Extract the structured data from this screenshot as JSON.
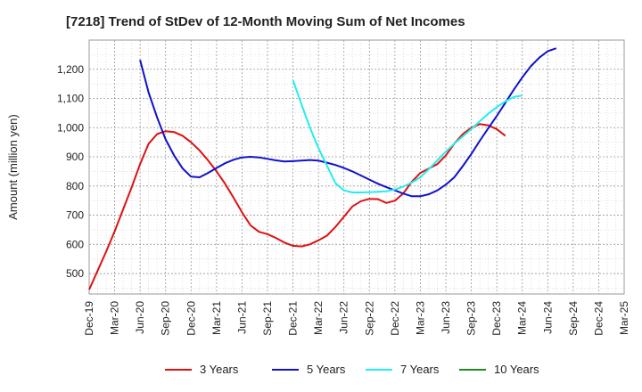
{
  "chart_data": {
    "type": "line",
    "title": "[7218]  Trend of StDev of 12-Month Moving Sum of Net Incomes",
    "ylabel": "Amount (million yen)",
    "xlabel": "",
    "ylim": [
      430,
      1300
    ],
    "yticks": [
      500,
      600,
      700,
      800,
      900,
      1000,
      1100,
      1200
    ],
    "ytick_labels": [
      "500",
      "600",
      "700",
      "800",
      "900",
      "1,000",
      "1,100",
      "1,200"
    ],
    "x_categories": [
      "Dec-19",
      "Mar-20",
      "Jun-20",
      "Sep-20",
      "Dec-20",
      "Mar-21",
      "Jun-21",
      "Sep-21",
      "Dec-21",
      "Mar-22",
      "Jun-22",
      "Sep-22",
      "Dec-22",
      "Mar-23",
      "Jun-23",
      "Sep-23",
      "Dec-23",
      "Mar-24",
      "Jun-24",
      "Sep-24",
      "Dec-24",
      "Mar-25"
    ],
    "grid": true,
    "legend_position": "bottom",
    "series": [
      {
        "name": "3 Years",
        "color": "#dd1111",
        "points": [
          [
            0,
            445
          ],
          [
            1,
            510
          ],
          [
            2,
            575
          ],
          [
            3,
            645
          ],
          [
            4,
            720
          ],
          [
            5,
            795
          ],
          [
            6,
            875
          ],
          [
            7,
            945
          ],
          [
            8,
            978
          ],
          [
            9,
            988
          ],
          [
            10,
            985
          ],
          [
            11,
            972
          ],
          [
            12,
            950
          ],
          [
            13,
            922
          ],
          [
            14,
            888
          ],
          [
            15,
            850
          ],
          [
            16,
            808
          ],
          [
            17,
            760
          ],
          [
            18,
            710
          ],
          [
            19,
            665
          ],
          [
            20,
            643
          ],
          [
            21,
            635
          ],
          [
            22,
            622
          ],
          [
            23,
            606
          ],
          [
            24,
            595
          ],
          [
            25,
            593
          ],
          [
            26,
            600
          ],
          [
            27,
            614
          ],
          [
            28,
            630
          ],
          [
            29,
            660
          ],
          [
            30,
            695
          ],
          [
            31,
            730
          ],
          [
            32,
            748
          ],
          [
            33,
            756
          ],
          [
            34,
            755
          ],
          [
            35,
            742
          ],
          [
            36,
            750
          ],
          [
            37,
            775
          ],
          [
            38,
            815
          ],
          [
            39,
            845
          ],
          [
            40,
            860
          ],
          [
            41,
            875
          ],
          [
            42,
            905
          ],
          [
            43,
            945
          ],
          [
            44,
            978
          ],
          [
            45,
            1000
          ],
          [
            46,
            1012
          ],
          [
            47,
            1008
          ],
          [
            48,
            995
          ],
          [
            49,
            972
          ]
        ]
      },
      {
        "name": "5 Years",
        "color": "#1111cc",
        "points": [
          [
            6,
            1232
          ],
          [
            7,
            1120
          ],
          [
            8,
            1035
          ],
          [
            9,
            960
          ],
          [
            10,
            905
          ],
          [
            11,
            860
          ],
          [
            12,
            832
          ],
          [
            13,
            830
          ],
          [
            14,
            845
          ],
          [
            15,
            862
          ],
          [
            16,
            878
          ],
          [
            17,
            890
          ],
          [
            18,
            898
          ],
          [
            19,
            900
          ],
          [
            20,
            898
          ],
          [
            21,
            893
          ],
          [
            22,
            888
          ],
          [
            23,
            884
          ],
          [
            24,
            885
          ],
          [
            25,
            887
          ],
          [
            26,
            889
          ],
          [
            27,
            887
          ],
          [
            28,
            880
          ],
          [
            29,
            872
          ],
          [
            30,
            862
          ],
          [
            31,
            850
          ],
          [
            32,
            836
          ],
          [
            33,
            822
          ],
          [
            34,
            808
          ],
          [
            35,
            796
          ],
          [
            36,
            785
          ],
          [
            37,
            774
          ],
          [
            38,
            765
          ],
          [
            39,
            765
          ],
          [
            40,
            772
          ],
          [
            41,
            785
          ],
          [
            42,
            805
          ],
          [
            43,
            830
          ],
          [
            44,
            868
          ],
          [
            45,
            910
          ],
          [
            46,
            955
          ],
          [
            47,
            998
          ],
          [
            48,
            1040
          ],
          [
            49,
            1085
          ],
          [
            50,
            1130
          ],
          [
            51,
            1172
          ],
          [
            52,
            1210
          ],
          [
            53,
            1240
          ],
          [
            54,
            1262
          ],
          [
            55,
            1272
          ]
        ]
      },
      {
        "name": "7 Years",
        "color": "#22eeee",
        "points": [
          [
            24,
            1162
          ],
          [
            25,
            1080
          ],
          [
            26,
            1000
          ],
          [
            27,
            930
          ],
          [
            28,
            870
          ],
          [
            29,
            810
          ],
          [
            30,
            785
          ],
          [
            31,
            778
          ],
          [
            32,
            778
          ],
          [
            33,
            779
          ],
          [
            34,
            780
          ],
          [
            35,
            782
          ],
          [
            36,
            788
          ],
          [
            37,
            798
          ],
          [
            38,
            812
          ],
          [
            39,
            830
          ],
          [
            40,
            858
          ],
          [
            41,
            888
          ],
          [
            42,
            918
          ],
          [
            43,
            945
          ],
          [
            44,
            970
          ],
          [
            45,
            995
          ],
          [
            46,
            1022
          ],
          [
            47,
            1048
          ],
          [
            48,
            1070
          ],
          [
            49,
            1090
          ],
          [
            50,
            1105
          ],
          [
            51,
            1110
          ]
        ]
      },
      {
        "name": "10 Years",
        "color": "#228822",
        "points": []
      }
    ]
  }
}
